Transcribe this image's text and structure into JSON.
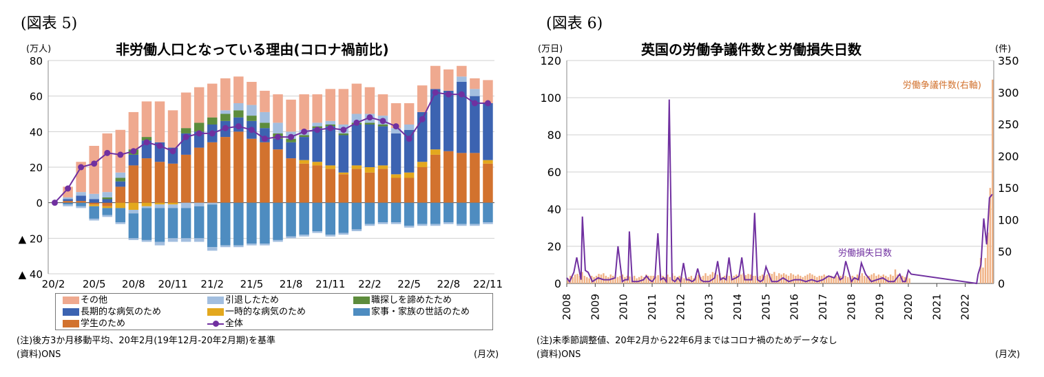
{
  "panel5": {
    "fig_label": "(図表 5)",
    "title": "非労働人口となっている理由(コロナ禍前比)",
    "unit": "(万人)",
    "note": "(注)後方3か月移動平均、20年2月(19年12月-20年2月期)を基準",
    "source": "(資料)ONS",
    "freq": "(月次)"
  },
  "panel6": {
    "fig_label": "(図表 6)",
    "title": "英国の労働争議件数と労働損失日数",
    "unit_left": "(万日)",
    "unit_right": "(件)",
    "note": "(注)未季節調整値、20年2月から22年6月まではコロナ禍のためデータなし",
    "source": "(資料)ONS",
    "freq": "(月次)",
    "label_disputes": "労働争議件数(右軸)",
    "label_days": "労働損失日数"
  },
  "chart_data": [
    {
      "type": "bar",
      "stacked": true,
      "unit": "(万人)",
      "ylim": [
        -40,
        80
      ],
      "yticks": [
        80,
        60,
        40,
        20,
        0,
        -20,
        -40
      ],
      "ytick_labels": [
        "80",
        "60",
        "40",
        "20",
        "0",
        "▲ 20",
        "▲ 40"
      ],
      "grid": true,
      "categories": [
        "20/2",
        "20/3",
        "20/4",
        "20/5",
        "20/6",
        "20/7",
        "20/8",
        "20/9",
        "20/10",
        "20/11",
        "20/12",
        "21/1",
        "21/2",
        "21/3",
        "21/4",
        "21/5",
        "21/6",
        "21/7",
        "21/8",
        "21/9",
        "21/10",
        "21/11",
        "21/12",
        "22/1",
        "22/2",
        "22/3",
        "22/4",
        "22/5",
        "22/6",
        "22/7",
        "22/8",
        "22/9",
        "22/10",
        "22/11"
      ],
      "xtick_labels": [
        {
          "index": 0,
          "label": "20/2"
        },
        {
          "index": 3,
          "label": "20/5"
        },
        {
          "index": 6,
          "label": "20/8"
        },
        {
          "index": 9,
          "label": "20/11"
        },
        {
          "index": 12,
          "label": "21/2"
        },
        {
          "index": 15,
          "label": "21/5"
        },
        {
          "index": 18,
          "label": "21/8"
        },
        {
          "index": 21,
          "label": "21/11"
        },
        {
          "index": 24,
          "label": "22/2"
        },
        {
          "index": 27,
          "label": "22/5"
        },
        {
          "index": 30,
          "label": "22/8"
        },
        {
          "index": 33,
          "label": "22/11"
        }
      ],
      "series": [
        {
          "name": "学生のため",
          "color": "#d2722e",
          "values": [
            0,
            1,
            1,
            -1,
            -2,
            9,
            21,
            25,
            23,
            22,
            27,
            31,
            34,
            37,
            40,
            36,
            34,
            30,
            25,
            22,
            21,
            19,
            16,
            19,
            17,
            19,
            14,
            14,
            20,
            27,
            29,
            28,
            28,
            22
          ]
        },
        {
          "name": "一時的な病気のため",
          "color": "#e3a81e",
          "values": [
            0,
            0,
            0,
            -1,
            -1,
            -3,
            -4,
            -2,
            -1,
            -1,
            0,
            0,
            0,
            0,
            0,
            0,
            0,
            0,
            0,
            2,
            2,
            2,
            1,
            2,
            3,
            2,
            2,
            3,
            3,
            3,
            0,
            0,
            0,
            2
          ]
        },
        {
          "name": "長期的な病気のため",
          "color": "#3c63b1",
          "values": [
            0,
            1,
            3,
            2,
            2,
            3,
            6,
            10,
            11,
            9,
            12,
            9,
            10,
            9,
            8,
            10,
            8,
            6,
            9,
            13,
            19,
            22,
            21,
            23,
            24,
            22,
            23,
            24,
            28,
            34,
            34,
            40,
            32,
            32
          ]
        },
        {
          "name": "職探しを諦めたため",
          "color": "#5d8c3c",
          "values": [
            0,
            0,
            0,
            0,
            1,
            2,
            3,
            2,
            0,
            0,
            3,
            5,
            4,
            4,
            4,
            3,
            3,
            3,
            2,
            1,
            1,
            1,
            1,
            1,
            1,
            1,
            0,
            0,
            0,
            0,
            0,
            0,
            0,
            0
          ]
        },
        {
          "name": "引退したため",
          "color": "#a2bedf",
          "values": [
            0,
            1,
            2,
            3,
            3,
            3,
            -2,
            -1,
            -2,
            -2,
            -3,
            -2,
            -1,
            2,
            4,
            6,
            6,
            6,
            4,
            3,
            2,
            2,
            5,
            5,
            5,
            5,
            3,
            3,
            0,
            0,
            0,
            3,
            4,
            0
          ]
        },
        {
          "name": "家事・家族の世話のため",
          "color": "#4e8cc0",
          "values": [
            0,
            -1,
            -2,
            -7,
            -4,
            -8,
            -14,
            -18,
            -19,
            -17,
            -17,
            -18,
            -24,
            -24,
            -24,
            -23,
            -23,
            -21,
            -19,
            -18,
            -16,
            -18,
            -17,
            -15,
            -12,
            -11,
            -11,
            -13,
            -12,
            -12,
            -11,
            -12,
            -12,
            -11
          ]
        },
        {
          "name": "その他",
          "color": "#efa98f",
          "values": [
            0,
            6,
            17,
            27,
            33,
            24,
            21,
            20,
            23,
            21,
            20,
            20,
            19,
            18,
            15,
            13,
            12,
            16,
            18,
            20,
            16,
            18,
            20,
            17,
            15,
            12,
            14,
            12,
            15,
            13,
            12,
            6,
            6,
            13
          ]
        }
      ],
      "negative_extra": [
        0,
        -1,
        -1,
        -1,
        -1,
        -1,
        -1,
        -1,
        -2,
        -2,
        -2,
        -2,
        -2,
        -1,
        -1,
        -1,
        -1,
        -1,
        -1,
        -1,
        -1,
        -1,
        -1,
        -1,
        -1,
        -1,
        -1,
        -1,
        -1,
        -1,
        -1,
        -1,
        -1,
        -1
      ],
      "line": {
        "name": "全体",
        "color": "#7030a0",
        "values": [
          0,
          8,
          20,
          22,
          28,
          27,
          29,
          34,
          32,
          29,
          37,
          39,
          39,
          42,
          43,
          41,
          36,
          37,
          37,
          40,
          41,
          42,
          41,
          45,
          48,
          46,
          43,
          36,
          47,
          62,
          61,
          61,
          56,
          56
        ]
      },
      "legend": [
        [
          "その他",
          "引退したため",
          "職探しを諦めたため"
        ],
        [
          "長期的な病気のため",
          "一時的な病気のため",
          "家事・家族の世話のため"
        ],
        [
          "学生のため",
          "全体"
        ]
      ]
    },
    {
      "type": "line",
      "ylabel_left": "(万日)",
      "ylabel_right": "(件)",
      "ylim_left": [
        0,
        120
      ],
      "ylim_right": [
        0,
        350
      ],
      "yticks_left": [
        0,
        20,
        40,
        60,
        80,
        100,
        120
      ],
      "yticks_right": [
        0,
        50,
        100,
        150,
        200,
        250,
        300,
        350
      ],
      "xlim": [
        2008,
        2023
      ],
      "xtick_labels": [
        "2008",
        "2009",
        "2010",
        "2011",
        "2012",
        "2013",
        "2014",
        "2015",
        "2016",
        "2017",
        "2018",
        "2019",
        "2020",
        "2021",
        "2022"
      ],
      "line_series": {
        "name": "労働損失日数",
        "axis": "left",
        "color": "#7030a0",
        "x": [
          2008.0,
          2008.1,
          2008.25,
          2008.35,
          2008.5,
          2008.55,
          2008.65,
          2008.75,
          2008.9,
          2009.1,
          2009.3,
          2009.5,
          2009.7,
          2009.8,
          2009.95,
          2010.05,
          2010.15,
          2010.2,
          2010.3,
          2010.5,
          2010.7,
          2010.8,
          2010.9,
          2011.0,
          2011.1,
          2011.2,
          2011.3,
          2011.4,
          2011.5,
          2011.6,
          2011.7,
          2011.8,
          2011.9,
          2012.0,
          2012.1,
          2012.2,
          2012.3,
          2012.4,
          2012.5,
          2012.6,
          2012.7,
          2012.8,
          2013.0,
          2013.2,
          2013.3,
          2013.4,
          2013.5,
          2013.6,
          2013.7,
          2013.8,
          2013.95,
          2014.05,
          2014.15,
          2014.25,
          2014.35,
          2014.5,
          2014.6,
          2014.7,
          2014.8,
          2014.9,
          2015.0,
          2015.2,
          2015.4,
          2015.6,
          2015.8,
          2016.0,
          2016.2,
          2016.4,
          2016.6,
          2016.8,
          2017.0,
          2017.2,
          2017.4,
          2017.5,
          2017.6,
          2017.7,
          2017.8,
          2018.0,
          2018.1,
          2018.25,
          2018.35,
          2018.5,
          2018.7,
          2018.9,
          2019.1,
          2019.3,
          2019.5,
          2019.7,
          2019.8,
          2019.9,
          2020.0,
          2020.1,
          2022.4,
          2022.45,
          2022.55,
          2022.65,
          2022.75,
          2022.85,
          2022.95
        ],
        "y": [
          3,
          1,
          6,
          14,
          2,
          36,
          7,
          6,
          1,
          3,
          2,
          2,
          3,
          20,
          1,
          2,
          2,
          28,
          1,
          1,
          2,
          4,
          2,
          1,
          3,
          27,
          2,
          3,
          1,
          99,
          2,
          1,
          3,
          1,
          11,
          2,
          2,
          1,
          2,
          8,
          2,
          1,
          1,
          3,
          12,
          2,
          3,
          2,
          14,
          2,
          3,
          4,
          14,
          2,
          2,
          2,
          38,
          2,
          1,
          2,
          9,
          1,
          1,
          3,
          1,
          2,
          2,
          1,
          2,
          1,
          2,
          4,
          3,
          6,
          2,
          3,
          12,
          1,
          3,
          2,
          11,
          5,
          1,
          2,
          3,
          1,
          1,
          5,
          1,
          1,
          7,
          5,
          0,
          5,
          10,
          35,
          21,
          46,
          48
        ]
      },
      "bar_series": {
        "name": "労働争議件数(右軸)",
        "axis": "right",
        "color": "#f0b184",
        "values_by_year": {
          "2008": [
            8,
            12,
            10,
            14,
            15,
            12,
            18,
            12,
            10,
            8,
            12,
            10
          ],
          "2009": [
            12,
            15,
            14,
            16,
            12,
            10,
            14,
            12,
            10,
            10,
            12,
            14
          ],
          "2010": [
            10,
            12,
            11,
            10,
            12,
            8,
            10,
            12,
            10,
            14,
            12,
            12
          ],
          "2011": [
            12,
            11,
            13,
            14,
            12,
            10,
            14,
            10,
            16,
            12,
            10,
            12
          ],
          "2012": [
            10,
            8,
            9,
            10,
            12,
            8,
            11,
            14,
            10,
            12,
            16,
            12
          ],
          "2013": [
            14,
            18,
            16,
            14,
            16,
            10,
            12,
            14,
            12,
            10,
            12,
            14
          ],
          "2014": [
            12,
            14,
            16,
            13,
            15,
            14,
            12,
            12,
            10,
            12,
            14,
            12
          ],
          "2015": [
            14,
            16,
            15,
            18,
            12,
            16,
            14,
            16,
            14,
            12,
            16,
            14
          ],
          "2016": [
            12,
            14,
            12,
            10,
            12,
            14,
            16,
            14,
            12,
            10,
            12,
            12
          ],
          "2017": [
            14,
            12,
            10,
            12,
            10,
            12,
            10,
            12,
            14,
            12,
            10,
            12
          ],
          "2018": [
            12,
            10,
            14,
            12,
            16,
            12,
            10,
            12,
            14,
            16,
            12,
            14
          ],
          "2019": [
            12,
            14,
            12,
            10,
            14,
            12,
            22,
            14,
            10,
            12,
            10,
            14
          ],
          "2020": [
            8
          ],
          "2022": [
            0,
            0,
            0,
            0,
            0,
            0,
            40,
            25,
            40,
            80,
            150,
            320
          ]
        }
      }
    }
  ]
}
